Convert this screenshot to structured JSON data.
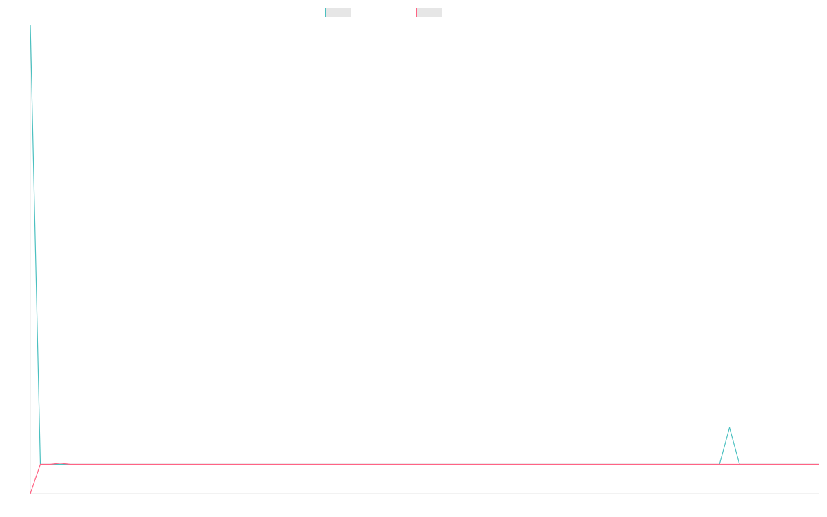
{
  "chart_data": {
    "type": "line",
    "title": "",
    "xlabel": "",
    "ylabel": "",
    "grid": false,
    "legend_position": "top-center",
    "x": [
      0,
      1,
      2,
      3,
      4,
      5,
      6,
      7,
      8,
      9,
      10,
      11,
      12,
      13,
      14,
      15,
      16,
      17,
      18,
      19,
      20,
      21,
      22,
      23,
      24,
      25,
      26,
      27,
      28,
      29,
      30,
      31,
      32,
      33,
      34,
      35,
      36,
      37,
      38,
      39,
      40,
      41,
      42,
      43,
      44,
      45,
      46,
      47,
      48,
      49,
      50,
      51,
      52,
      53,
      54,
      55,
      56,
      57,
      58,
      59,
      60,
      61,
      62,
      63,
      64,
      65,
      66,
      67,
      68,
      69,
      70,
      71,
      72,
      73,
      74,
      75,
      76,
      77,
      78,
      79
    ],
    "ylim": [
      -1.2,
      18
    ],
    "series": [
      {
        "name": "",
        "color": "#4bc0c0",
        "values": [
          18,
          0,
          0,
          0,
          0,
          0,
          0,
          0,
          0,
          0,
          0,
          0,
          0,
          0,
          0,
          0,
          0,
          0,
          0,
          0,
          0,
          0,
          0,
          0,
          0,
          0,
          0,
          0,
          0,
          0,
          0,
          0,
          0,
          0,
          0,
          0,
          0,
          0,
          0,
          0,
          0,
          0,
          0,
          0,
          0,
          0,
          0,
          0,
          0,
          0,
          0,
          0,
          0,
          0,
          0,
          0,
          0,
          0,
          0,
          0,
          0,
          0,
          0,
          0,
          0,
          0,
          0,
          0,
          0,
          0,
          1.5,
          0,
          0,
          0,
          0,
          0,
          0,
          0,
          0,
          0
        ]
      },
      {
        "name": "",
        "color": "#ff6384",
        "values": [
          -1.2,
          0,
          0,
          0.05,
          0,
          0,
          0,
          0,
          0,
          0,
          0,
          0,
          0,
          0,
          0,
          0,
          0,
          0,
          0,
          0,
          0,
          0,
          0,
          0,
          0,
          0,
          0,
          0,
          0,
          0,
          0,
          0,
          0,
          0,
          0,
          0,
          0,
          0,
          0,
          0,
          0,
          0,
          0,
          0,
          0,
          0,
          0,
          0,
          0,
          0,
          0,
          0,
          0,
          0,
          0,
          0,
          0,
          0,
          0,
          0,
          0,
          0,
          0,
          0,
          0,
          0,
          0,
          0,
          0,
          0,
          0,
          0,
          0,
          0,
          0,
          0,
          0,
          0,
          0,
          0
        ]
      }
    ]
  }
}
